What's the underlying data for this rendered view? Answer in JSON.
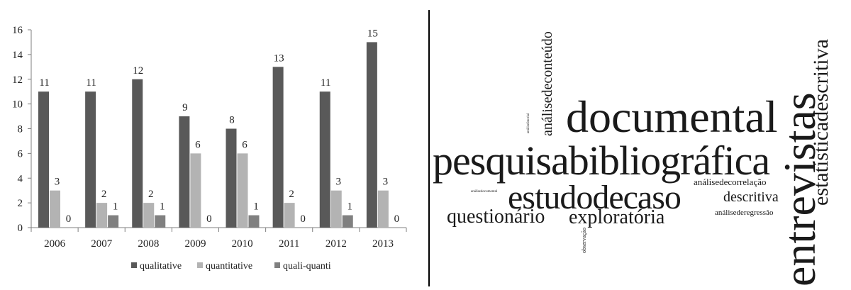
{
  "chart_data": {
    "type": "bar",
    "categories": [
      "2006",
      "2007",
      "2008",
      "2009",
      "2010",
      "2011",
      "2012",
      "2013"
    ],
    "series": [
      {
        "name": "qualitative",
        "values": [
          11,
          11,
          12,
          9,
          8,
          13,
          11,
          15
        ],
        "color": "#595959"
      },
      {
        "name": "quantitative",
        "values": [
          3,
          2,
          2,
          6,
          6,
          2,
          3,
          3
        ],
        "color": "#b3b3b3"
      },
      {
        "name": "quali-quanti",
        "values": [
          0,
          1,
          1,
          0,
          1,
          0,
          1,
          0
        ],
        "color": "#808080"
      }
    ],
    "yticks": [
      "0",
      "2",
      "4",
      "6",
      "8",
      "10",
      "12",
      "14",
      "16"
    ],
    "ylim": [
      0,
      16
    ],
    "grid": false,
    "legend": "bottom",
    "title": "",
    "xlabel": "",
    "ylabel": ""
  },
  "word_cloud": {
    "words": [
      {
        "id": "pesquisabibliografica",
        "text": "pesquisabibliográfica"
      },
      {
        "id": "documental",
        "text": "documental"
      },
      {
        "id": "entrevistas",
        "text": "entrevistas"
      },
      {
        "id": "estudodecaso",
        "text": "estudodecaso"
      },
      {
        "id": "estatisticadescritiva",
        "text": "estatísticadescritiva"
      },
      {
        "id": "questionario",
        "text": "questionário"
      },
      {
        "id": "exploratoria",
        "text": "exploratória"
      },
      {
        "id": "descritiva",
        "text": "descritiva"
      },
      {
        "id": "analisedeconteudo",
        "text": "análisedeconteúdo"
      },
      {
        "id": "analisedecorrelacao",
        "text": "análisedecorrelação"
      },
      {
        "id": "analisederegressao",
        "text": "análisederegressão"
      },
      {
        "id": "observacao",
        "text": "observação"
      },
      {
        "id": "analisedocumental",
        "text": "análisedocumental"
      },
      {
        "id": "analisefatorial",
        "text": "análisefatorial"
      }
    ]
  }
}
